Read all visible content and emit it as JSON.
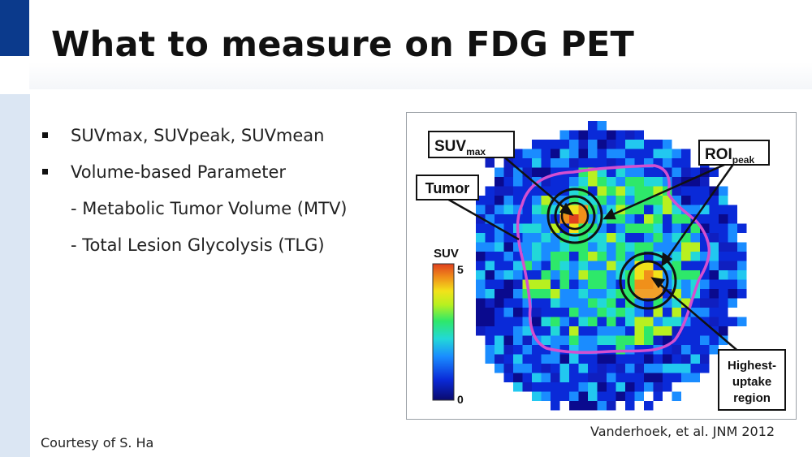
{
  "slide": {
    "title": "What to measure on FDG PET",
    "bullets": [
      "SUVmax, SUVpeak, SUVmean",
      "Volume-based Parameter"
    ],
    "sub_items": [
      "- Metabolic Tumor Volume (MTV)",
      "- Total Lesion Glycolysis (TLG)"
    ],
    "courtesy": "Courtesy of S. Ha",
    "citation": "Vanderhoek, et al. JNM 2012"
  },
  "figure": {
    "label_suv_main": "SUV",
    "label_suv_sub": "max",
    "label_roi_main": "ROI",
    "label_roi_sub": "peak",
    "label_tumor": "Tumor",
    "label_highest_line1": "Highest-",
    "label_highest_line2": "uptake",
    "label_highest_line3": "region",
    "colorbar_title": "SUV",
    "colorbar_max": "5",
    "colorbar_min": "0",
    "colors": {
      "outline": "#d44fd0",
      "colorbar_stops": [
        "#0a0a6e",
        "#0a2ad8",
        "#1a8cff",
        "#22d8d8",
        "#2ee86a",
        "#b8f020",
        "#f2e21a",
        "#f0901a",
        "#e0401e"
      ]
    }
  }
}
